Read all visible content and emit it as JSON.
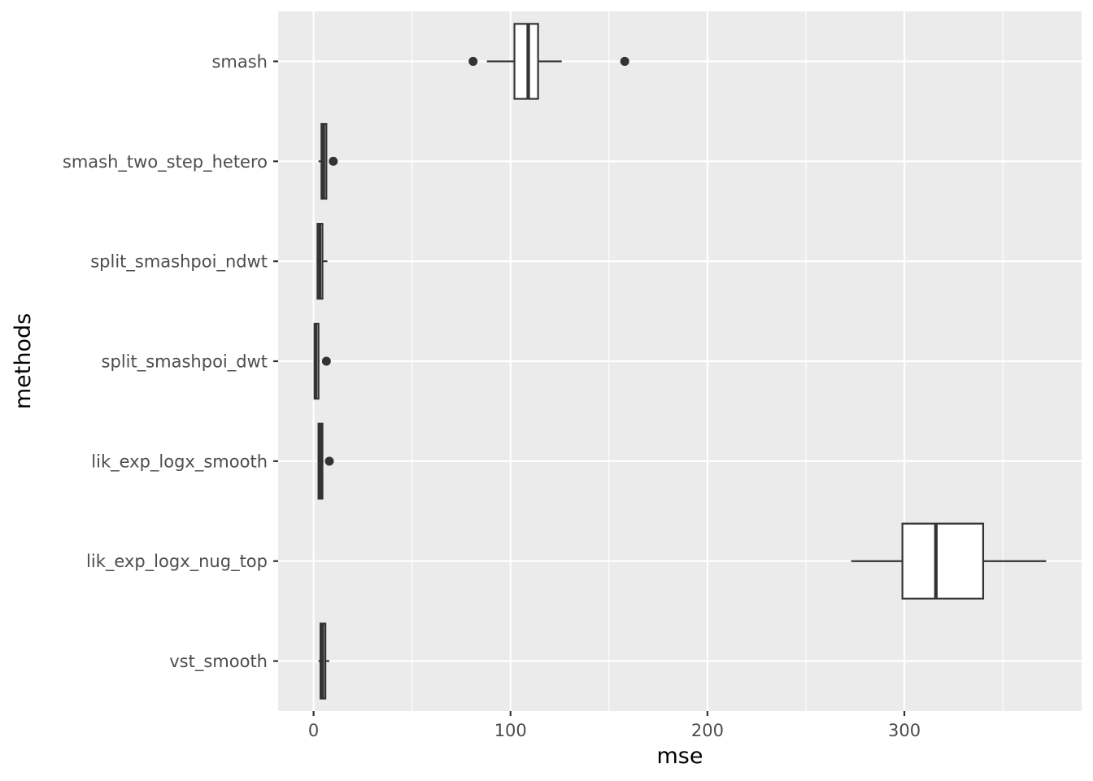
{
  "chart_data": {
    "type": "boxplot",
    "orientation": "horizontal",
    "xlabel": "mse",
    "ylabel": "methods",
    "xlim": [
      -18,
      390
    ],
    "x_ticks": [
      0,
      100,
      200,
      300
    ],
    "x_minor_ticks": [
      50,
      150,
      250,
      350
    ],
    "grid": true,
    "legend": "none",
    "colors": {
      "panel_background": "#ebebeb",
      "grid_major": "#ffffff",
      "box_fill": "#ffffff",
      "box_line": "#333333",
      "tick_label": "#4d4d4d",
      "axis_title": "#000000"
    },
    "categories": [
      "smash",
      "smash_two_step_hetero",
      "split_smashpoi_ndwt",
      "split_smashpoi_dwt",
      "lik_exp_logx_smooth",
      "lik_exp_logx_nug_top",
      "vst_smooth"
    ],
    "boxes": [
      {
        "method": "smash",
        "whisker_low": 88,
        "q1": 102,
        "median": 109,
        "q3": 114,
        "whisker_high": 126,
        "outliers": [
          81,
          158
        ]
      },
      {
        "method": "smash_two_step_hetero",
        "whisker_low": 2.5,
        "q1": 4,
        "median": 5,
        "q3": 6.5,
        "whisker_high": 7,
        "outliers": [
          10
        ]
      },
      {
        "method": "split_smashpoi_ndwt",
        "whisker_low": 1.5,
        "q1": 2,
        "median": 3,
        "q3": 4.5,
        "whisker_high": 7,
        "outliers": []
      },
      {
        "method": "split_smashpoi_dwt",
        "whisker_low": 0.3,
        "q1": 0.5,
        "median": 1,
        "q3": 2.5,
        "whisker_high": 3,
        "outliers": [
          6.5
        ]
      },
      {
        "method": "lik_exp_logx_smooth",
        "whisker_low": 2,
        "q1": 2.5,
        "median": 3.5,
        "q3": 4.5,
        "whisker_high": 5,
        "outliers": [
          8
        ]
      },
      {
        "method": "lik_exp_logx_nug_top",
        "whisker_low": 273,
        "q1": 299,
        "median": 316,
        "q3": 340,
        "whisker_high": 372,
        "outliers": []
      },
      {
        "method": "vst_smooth",
        "whisker_low": 2.5,
        "q1": 3.5,
        "median": 4.5,
        "q3": 6,
        "whisker_high": 8,
        "outliers": []
      }
    ]
  }
}
